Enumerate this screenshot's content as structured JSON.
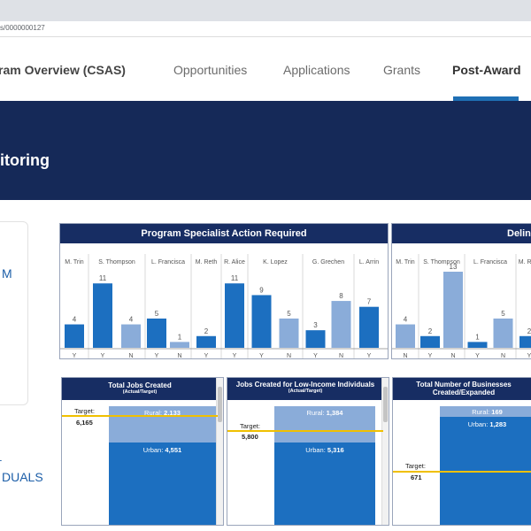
{
  "browser": {
    "url_fragment": "s/0000000127"
  },
  "nav": {
    "items": [
      {
        "label": "ram Overview (CSAS)",
        "bold": false
      },
      {
        "label": "Opportunities",
        "bold": false
      },
      {
        "label": "Applications",
        "bold": false
      },
      {
        "label": "Grants",
        "bold": false
      },
      {
        "label": "Post-Award",
        "bold": true,
        "active": true
      }
    ]
  },
  "banner": {
    "title": "itoring"
  },
  "sidebar": {
    "fragment_1": "M",
    "fragment_2": "L",
    "fragment_3": "DUALS"
  },
  "panels": {
    "action_required": {
      "title": "Program Specialist Action Required",
      "chart_data": {
        "type": "bar",
        "groups": [
          "M. Trin",
          "S. Thompson",
          "L. Francisca",
          "M. Reth",
          "R. Alice",
          "K. Lopez",
          "G. Grechen",
          "L. Arrin"
        ],
        "bars": [
          {
            "group": 0,
            "cat": "Y",
            "value": 4,
            "shade": "dark"
          },
          {
            "group": 1,
            "cat": "Y",
            "value": 11,
            "shade": "dark"
          },
          {
            "group": 1,
            "cat": "N",
            "value": 4,
            "shade": "light"
          },
          {
            "group": 2,
            "cat": "Y",
            "value": 5,
            "shade": "dark"
          },
          {
            "group": 2,
            "cat": "N",
            "value": 1,
            "shade": "light"
          },
          {
            "group": 3,
            "cat": "Y",
            "value": 2,
            "shade": "dark"
          },
          {
            "group": 4,
            "cat": "Y",
            "value": 11,
            "shade": "dark"
          },
          {
            "group": 5,
            "cat": "Y",
            "value": 9,
            "shade": "dark"
          },
          {
            "group": 5,
            "cat": "N",
            "value": 5,
            "shade": "light"
          },
          {
            "group": 6,
            "cat": "Y",
            "value": 3,
            "shade": "dark"
          },
          {
            "group": 6,
            "cat": "N",
            "value": 8,
            "shade": "light"
          },
          {
            "group": 7,
            "cat": "Y",
            "value": 7,
            "shade": "dark"
          }
        ],
        "ylim": [
          0,
          13
        ]
      }
    },
    "delinquent": {
      "title": "Delin",
      "chart_data": {
        "type": "bar",
        "groups": [
          "M. Trin",
          "S. Thompson",
          "L. Francisca",
          "M. Reth"
        ],
        "bars": [
          {
            "group": 0,
            "cat": "N",
            "value": 4,
            "shade": "light"
          },
          {
            "group": 1,
            "cat": "Y",
            "value": 2,
            "shade": "dark"
          },
          {
            "group": 1,
            "cat": "N",
            "value": 13,
            "shade": "light"
          },
          {
            "group": 2,
            "cat": "Y",
            "value": 1,
            "shade": "dark"
          },
          {
            "group": 2,
            "cat": "N",
            "value": 5,
            "shade": "light"
          },
          {
            "group": 3,
            "cat": "Y",
            "value": 2,
            "shade": "dark"
          }
        ],
        "ylim": [
          0,
          13
        ]
      }
    }
  },
  "kpis": [
    {
      "title": "Total Jobs Created",
      "subtitle": "(Actual/Target)",
      "rural_label": "Rural:",
      "rural": "2,133",
      "urban_label": "Urban:",
      "urban": "4,551",
      "target_label": "Target:",
      "target": "6,165"
    },
    {
      "title": "Jobs Created for Low-Income Individuals",
      "subtitle": "(Actual/Target)",
      "rural_label": "Rural:",
      "rural": "1,384",
      "urban_label": "Urban:",
      "urban": "5,316",
      "target_label": "Target:",
      "target": "5,800"
    },
    {
      "title": "Total Number of Businesses Created/Expanded",
      "subtitle": "",
      "rural_label": "Rural:",
      "rural": "169",
      "urban_label": "Urban:",
      "urban": "1,283",
      "target_label": "Target:",
      "target": "671"
    }
  ],
  "colors": {
    "navy": "#152958",
    "bar_dark": "#1c6fc0",
    "bar_light": "#8aacd9",
    "target": "#f0c000",
    "accent": "#1f6fb4"
  }
}
